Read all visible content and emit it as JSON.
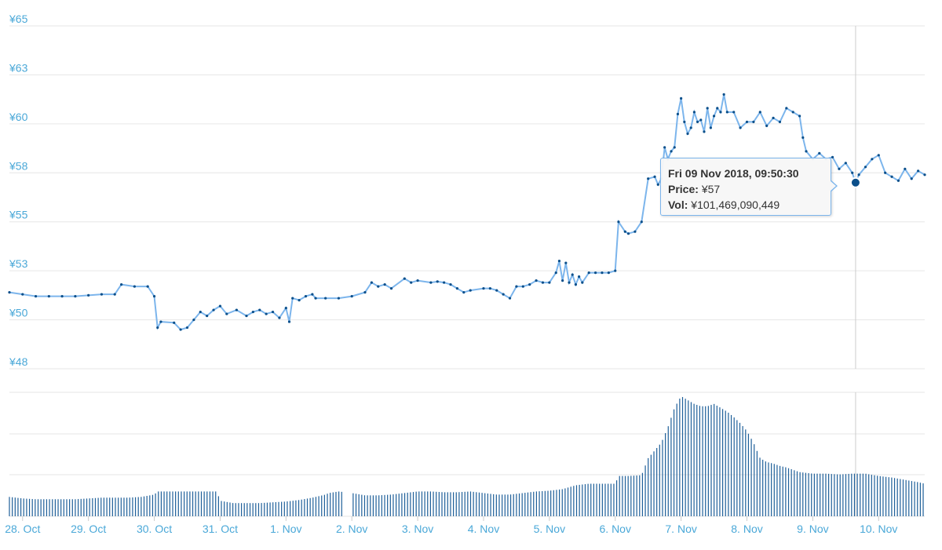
{
  "chart_data": {
    "type": "line",
    "y_ticks": [
      "¥65",
      "¥63",
      "¥60",
      "¥58",
      "¥55",
      "¥53",
      "¥50",
      "¥48"
    ],
    "y_tick_values": [
      65,
      62.5,
      60,
      57.5,
      55,
      52.5,
      50,
      47.5
    ],
    "ylim": [
      47.5,
      65
    ],
    "x_ticks": [
      "28. Oct",
      "29. Oct",
      "30. Oct",
      "31. Oct",
      "1. Nov",
      "2. Nov",
      "3. Nov",
      "4. Nov",
      "5. Nov",
      "6. Nov",
      "7. Nov",
      "8. Nov",
      "9. Nov",
      "10. Nov"
    ],
    "x_range_days": [
      -0.2,
      13.7
    ],
    "grid": true,
    "colors": {
      "price_line": "#7cb5ec",
      "marker": "#0b4f8a",
      "volume_bar": "#1e5f99",
      "tick_text": "#4aa8d8",
      "grid": "#e6e6e6",
      "crosshair": "#cccccc"
    },
    "series": [
      {
        "name": "Price",
        "unit": "¥",
        "points": [
          [
            -0.2,
            51.4
          ],
          [
            0.0,
            51.3
          ],
          [
            0.2,
            51.2
          ],
          [
            0.4,
            51.2
          ],
          [
            0.6,
            51.2
          ],
          [
            0.8,
            51.2
          ],
          [
            1.0,
            51.25
          ],
          [
            1.2,
            51.3
          ],
          [
            1.4,
            51.3
          ],
          [
            1.5,
            51.8
          ],
          [
            1.7,
            51.7
          ],
          [
            1.9,
            51.7
          ],
          [
            2.0,
            51.2
          ],
          [
            2.05,
            49.6
          ],
          [
            2.1,
            49.9
          ],
          [
            2.3,
            49.85
          ],
          [
            2.4,
            49.5
          ],
          [
            2.5,
            49.6
          ],
          [
            2.6,
            50.0
          ],
          [
            2.7,
            50.4
          ],
          [
            2.8,
            50.2
          ],
          [
            2.9,
            50.5
          ],
          [
            3.0,
            50.7
          ],
          [
            3.1,
            50.3
          ],
          [
            3.25,
            50.5
          ],
          [
            3.4,
            50.2
          ],
          [
            3.5,
            50.4
          ],
          [
            3.6,
            50.5
          ],
          [
            3.7,
            50.3
          ],
          [
            3.8,
            50.4
          ],
          [
            3.9,
            50.1
          ],
          [
            4.0,
            50.6
          ],
          [
            4.05,
            49.9
          ],
          [
            4.1,
            51.1
          ],
          [
            4.2,
            51.0
          ],
          [
            4.3,
            51.2
          ],
          [
            4.4,
            51.3
          ],
          [
            4.45,
            51.1
          ],
          [
            4.6,
            51.1
          ],
          [
            4.8,
            51.1
          ],
          [
            5.0,
            51.2
          ],
          [
            5.2,
            51.4
          ],
          [
            5.3,
            51.9
          ],
          [
            5.4,
            51.7
          ],
          [
            5.5,
            51.8
          ],
          [
            5.6,
            51.6
          ],
          [
            5.8,
            52.1
          ],
          [
            5.9,
            51.9
          ],
          [
            6.0,
            52.0
          ],
          [
            6.2,
            51.9
          ],
          [
            6.3,
            51.95
          ],
          [
            6.4,
            51.9
          ],
          [
            6.5,
            51.8
          ],
          [
            6.6,
            51.6
          ],
          [
            6.7,
            51.4
          ],
          [
            6.8,
            51.5
          ],
          [
            7.0,
            51.6
          ],
          [
            7.1,
            51.6
          ],
          [
            7.2,
            51.5
          ],
          [
            7.3,
            51.3
          ],
          [
            7.4,
            51.1
          ],
          [
            7.5,
            51.7
          ],
          [
            7.6,
            51.7
          ],
          [
            7.7,
            51.8
          ],
          [
            7.8,
            52.0
          ],
          [
            7.9,
            51.9
          ],
          [
            8.0,
            51.9
          ],
          [
            8.1,
            52.4
          ],
          [
            8.15,
            53.0
          ],
          [
            8.2,
            52.0
          ],
          [
            8.25,
            52.9
          ],
          [
            8.3,
            51.9
          ],
          [
            8.35,
            52.3
          ],
          [
            8.4,
            51.8
          ],
          [
            8.45,
            52.2
          ],
          [
            8.5,
            51.9
          ],
          [
            8.6,
            52.4
          ],
          [
            8.7,
            52.4
          ],
          [
            8.8,
            52.4
          ],
          [
            8.9,
            52.4
          ],
          [
            9.0,
            52.5
          ],
          [
            9.05,
            55.0
          ],
          [
            9.15,
            54.5
          ],
          [
            9.2,
            54.4
          ],
          [
            9.3,
            54.5
          ],
          [
            9.4,
            55.0
          ],
          [
            9.5,
            57.2
          ],
          [
            9.6,
            57.3
          ],
          [
            9.65,
            56.9
          ],
          [
            9.7,
            57.2
          ],
          [
            9.75,
            58.8
          ],
          [
            9.8,
            58.2
          ],
          [
            9.85,
            58.6
          ],
          [
            9.9,
            58.8
          ],
          [
            9.95,
            60.5
          ],
          [
            10.0,
            61.3
          ],
          [
            10.05,
            60.1
          ],
          [
            10.1,
            59.5
          ],
          [
            10.15,
            59.8
          ],
          [
            10.2,
            60.6
          ],
          [
            10.25,
            60.1
          ],
          [
            10.3,
            60.2
          ],
          [
            10.35,
            59.6
          ],
          [
            10.4,
            60.8
          ],
          [
            10.45,
            59.8
          ],
          [
            10.5,
            60.4
          ],
          [
            10.55,
            60.8
          ],
          [
            10.6,
            60.6
          ],
          [
            10.65,
            61.5
          ],
          [
            10.7,
            60.6
          ],
          [
            10.8,
            60.6
          ],
          [
            10.9,
            59.8
          ],
          [
            11.0,
            60.1
          ],
          [
            11.1,
            60.1
          ],
          [
            11.2,
            60.6
          ],
          [
            11.3,
            59.9
          ],
          [
            11.4,
            60.3
          ],
          [
            11.5,
            60.1
          ],
          [
            11.6,
            60.8
          ],
          [
            11.7,
            60.6
          ],
          [
            11.8,
            60.4
          ],
          [
            11.85,
            59.3
          ],
          [
            11.9,
            58.6
          ],
          [
            12.0,
            58.2
          ],
          [
            12.1,
            58.5
          ],
          [
            12.2,
            58.2
          ],
          [
            12.3,
            58.3
          ],
          [
            12.4,
            57.7
          ],
          [
            12.5,
            58.0
          ],
          [
            12.6,
            57.5
          ],
          [
            12.65,
            57.0
          ],
          [
            12.7,
            57.4
          ],
          [
            12.8,
            57.8
          ],
          [
            12.9,
            58.2
          ],
          [
            13.0,
            58.4
          ],
          [
            13.1,
            57.5
          ],
          [
            13.2,
            57.3
          ],
          [
            13.3,
            57.1
          ],
          [
            13.4,
            57.7
          ],
          [
            13.5,
            57.2
          ],
          [
            13.6,
            57.6
          ],
          [
            13.7,
            57.4
          ]
        ]
      },
      {
        "name": "Vol",
        "unit": "¥",
        "bars": [
          [
            -0.2,
            0.25
          ],
          [
            0.0,
            0.23
          ],
          [
            0.2,
            0.22
          ],
          [
            0.4,
            0.22
          ],
          [
            0.6,
            0.22
          ],
          [
            0.8,
            0.22
          ],
          [
            1.0,
            0.23
          ],
          [
            1.2,
            0.24
          ],
          [
            1.4,
            0.24
          ],
          [
            1.6,
            0.24
          ],
          [
            1.8,
            0.25
          ],
          [
            2.0,
            0.28
          ],
          [
            2.05,
            0.32
          ],
          [
            2.3,
            0.32
          ],
          [
            2.6,
            0.32
          ],
          [
            2.8,
            0.32
          ],
          [
            2.95,
            0.32
          ],
          [
            3.0,
            0.2
          ],
          [
            3.2,
            0.17
          ],
          [
            3.4,
            0.17
          ],
          [
            3.6,
            0.17
          ],
          [
            3.8,
            0.18
          ],
          [
            4.0,
            0.19
          ],
          [
            4.2,
            0.21
          ],
          [
            4.4,
            0.24
          ],
          [
            4.6,
            0.28
          ],
          [
            4.65,
            0.3
          ],
          [
            4.8,
            0.32
          ],
          [
            5.0,
            0.3
          ],
          [
            5.2,
            0.27
          ],
          [
            5.4,
            0.27
          ],
          [
            5.6,
            0.28
          ],
          [
            5.8,
            0.3
          ],
          [
            6.0,
            0.32
          ],
          [
            6.2,
            0.32
          ],
          [
            6.4,
            0.31
          ],
          [
            6.6,
            0.31
          ],
          [
            6.8,
            0.32
          ],
          [
            7.0,
            0.3
          ],
          [
            7.2,
            0.28
          ],
          [
            7.4,
            0.28
          ],
          [
            7.6,
            0.3
          ],
          [
            7.8,
            0.32
          ],
          [
            8.0,
            0.33
          ],
          [
            8.2,
            0.35
          ],
          [
            8.4,
            0.4
          ],
          [
            8.6,
            0.42
          ],
          [
            8.8,
            0.42
          ],
          [
            9.0,
            0.42
          ],
          [
            9.05,
            0.52
          ],
          [
            9.2,
            0.52
          ],
          [
            9.4,
            0.53
          ],
          [
            9.5,
            0.75
          ],
          [
            9.6,
            0.85
          ],
          [
            9.7,
            0.95
          ],
          [
            9.8,
            1.15
          ],
          [
            9.9,
            1.4
          ],
          [
            10.0,
            1.55
          ],
          [
            10.1,
            1.5
          ],
          [
            10.2,
            1.45
          ],
          [
            10.3,
            1.42
          ],
          [
            10.4,
            1.42
          ],
          [
            10.5,
            1.45
          ],
          [
            10.6,
            1.4
          ],
          [
            10.7,
            1.35
          ],
          [
            10.8,
            1.28
          ],
          [
            10.9,
            1.2
          ],
          [
            11.0,
            1.1
          ],
          [
            11.1,
            0.95
          ],
          [
            11.2,
            0.75
          ],
          [
            11.3,
            0.7
          ],
          [
            11.4,
            0.68
          ],
          [
            11.5,
            0.65
          ],
          [
            11.6,
            0.63
          ],
          [
            11.7,
            0.6
          ],
          [
            11.8,
            0.57
          ],
          [
            11.9,
            0.56
          ],
          [
            12.0,
            0.55
          ],
          [
            12.2,
            0.55
          ],
          [
            12.4,
            0.54
          ],
          [
            12.6,
            0.55
          ],
          [
            12.8,
            0.55
          ],
          [
            13.0,
            0.52
          ],
          [
            13.2,
            0.5
          ],
          [
            13.4,
            0.47
          ],
          [
            13.6,
            0.44
          ],
          [
            13.7,
            0.42
          ]
        ]
      }
    ],
    "tooltip": {
      "title": "Fri 09 Nov 2018, 09:50:30",
      "price_label": "Price:",
      "price_value": "¥57",
      "vol_label": "Vol:",
      "vol_value": "¥101,469,090,449"
    },
    "highlighted_point": [
      12.65,
      57.0
    ]
  }
}
